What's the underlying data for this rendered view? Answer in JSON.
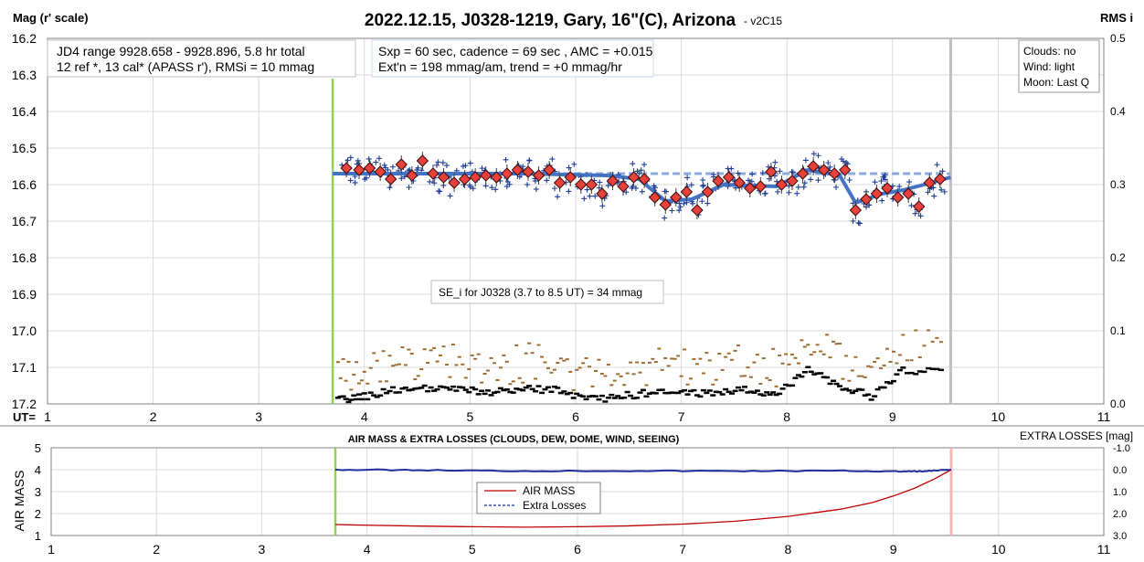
{
  "chart_data": [
    {
      "type": "scatter",
      "title": "2022.12.15, J0328-1219, Gary, 16\"(C), Arizona",
      "version": "- v2C15",
      "ylabel_left": "Mag (r' scale)",
      "ylabel_right": "RMS i",
      "xlabel": "UT=",
      "xlim": [
        1,
        11
      ],
      "ylim": [
        16.2,
        17.2
      ],
      "y2lim": [
        0.0,
        0.5
      ],
      "x_ticks": [
        "1",
        "2",
        "3",
        "4",
        "5",
        "6",
        "7",
        "8",
        "9",
        "10",
        "11"
      ],
      "y_ticks": [
        "16.2",
        "16.3",
        "16.4",
        "16.5",
        "16.6",
        "16.7",
        "16.8",
        "16.9",
        "17.0",
        "17.1",
        "17.2"
      ],
      "y2_ticks": [
        "0.5",
        "0.4",
        "0.3",
        "0.2",
        "0.1",
        "0.0"
      ],
      "grid": true,
      "start_line_x": 3.7,
      "end_line_x": 9.55,
      "colors": {
        "points": "#1f3d99",
        "averages": "#e8403a",
        "trend": "#4472c4",
        "reference": "#8eaadb",
        "rms": "#000000",
        "rms_scatter": "#9c6b30",
        "start_line": "#92d050",
        "end_line": "#bfbfbf"
      },
      "annotations": {
        "info_left_1": "JD4 range 9928.658 - 9928.896, 5.8 hr total",
        "info_left_2": "12 ref *, 13 cal*  (APASS r'), RMSi = 10 mmag",
        "info_mid_1": "Sxp = 60 sec, cadence = 69 sec , AMC = +0.015",
        "info_mid_2": "Ext'n = 198 mmag/am, trend = +0 mmag/hr",
        "weather_1": "Clouds: no",
        "weather_2": "Wind:  light",
        "weather_3": "Moon: Last Q",
        "se_note": "SE_i for J0328 (3.7 to 8.5 UT) = 34 mmag"
      },
      "reference_level": 16.57,
      "series": [
        {
          "name": "averages",
          "x": [
            3.83,
            3.95,
            4.05,
            4.15,
            4.25,
            4.35,
            4.45,
            4.55,
            4.65,
            4.75,
            4.85,
            4.95,
            5.05,
            5.15,
            5.25,
            5.35,
            5.45,
            5.55,
            5.65,
            5.75,
            5.85,
            5.95,
            6.05,
            6.15,
            6.25,
            6.35,
            6.45,
            6.55,
            6.65,
            6.75,
            6.85,
            6.95,
            7.05,
            7.15,
            7.25,
            7.35,
            7.45,
            7.55,
            7.65,
            7.75,
            7.85,
            7.95,
            8.05,
            8.15,
            8.25,
            8.35,
            8.45,
            8.55,
            8.65,
            8.75,
            8.85,
            8.95,
            9.05,
            9.15,
            9.25,
            9.35,
            9.45
          ],
          "y": [
            16.555,
            16.56,
            16.555,
            16.565,
            16.585,
            16.545,
            16.575,
            16.535,
            16.57,
            16.58,
            16.595,
            16.585,
            16.58,
            16.575,
            16.58,
            16.57,
            16.56,
            16.565,
            16.575,
            16.56,
            16.595,
            16.58,
            16.6,
            16.6,
            16.625,
            16.59,
            16.605,
            16.58,
            16.585,
            16.635,
            16.655,
            16.635,
            16.62,
            16.67,
            16.62,
            16.59,
            16.58,
            16.595,
            16.61,
            16.605,
            16.565,
            16.6,
            16.59,
            16.57,
            16.55,
            16.56,
            16.57,
            16.56,
            16.67,
            16.64,
            16.625,
            16.61,
            16.635,
            16.625,
            16.66,
            16.595,
            16.585
          ]
        },
        {
          "name": "trend",
          "x": [
            3.7,
            4.5,
            5.5,
            6.3,
            6.6,
            6.85,
            7.1,
            7.4,
            7.9,
            8.2,
            8.5,
            8.65,
            8.9,
            9.1,
            9.3,
            9.55
          ],
          "y": [
            16.57,
            16.57,
            16.57,
            16.575,
            16.585,
            16.645,
            16.64,
            16.6,
            16.605,
            16.56,
            16.575,
            16.65,
            16.625,
            16.615,
            16.6,
            16.58
          ]
        },
        {
          "name": "rms",
          "x": [
            3.75,
            4.0,
            4.3,
            4.6,
            4.9,
            5.2,
            5.5,
            5.8,
            6.1,
            6.4,
            6.7,
            7.0,
            7.3,
            7.6,
            7.9,
            8.2,
            8.5,
            8.8,
            9.1,
            9.5
          ],
          "y": [
            0.005,
            0.01,
            0.02,
            0.02,
            0.02,
            0.015,
            0.02,
            0.02,
            0.005,
            0.01,
            0.015,
            0.015,
            0.015,
            0.02,
            0.01,
            0.05,
            0.025,
            0.01,
            0.045,
            0.045
          ]
        }
      ]
    },
    {
      "type": "line",
      "title": "AIR MASS & EXTRA LOSSES (CLOUDS, DEW, DOME, WIND, SEEING)",
      "ylabel_left": "AIR MASS",
      "ylabel_right": "EXTRA LOSSES [mag]",
      "xlim": [
        1,
        11
      ],
      "ylim": [
        1,
        5
      ],
      "y2lim": [
        3.0,
        -1.0
      ],
      "x_ticks": [
        "1",
        "2",
        "3",
        "4",
        "5",
        "6",
        "7",
        "8",
        "9",
        "10",
        "11"
      ],
      "y_ticks": [
        "5",
        "4",
        "3",
        "2",
        "1"
      ],
      "y2_ticks": [
        "-1.0",
        "0.0",
        "1.0",
        "2.0",
        "3.0"
      ],
      "legend": [
        "AIR MASS",
        "Extra Losses"
      ],
      "series": [
        {
          "name": "AIR MASS",
          "x": [
            3.7,
            4.0,
            4.5,
            5.0,
            5.5,
            6.0,
            6.5,
            7.0,
            7.5,
            8.0,
            8.5,
            8.8,
            9.0,
            9.2,
            9.4,
            9.55
          ],
          "y": [
            1.5,
            1.47,
            1.43,
            1.4,
            1.38,
            1.4,
            1.44,
            1.52,
            1.65,
            1.87,
            2.2,
            2.5,
            2.8,
            3.15,
            3.6,
            4.0
          ]
        },
        {
          "name": "Extra Losses",
          "x": [
            3.7,
            4.5,
            5.5,
            6.5,
            7.5,
            8.5,
            9.0,
            9.3,
            9.55
          ],
          "y": [
            0.0,
            0.02,
            0.06,
            0.05,
            0.06,
            0.05,
            0.08,
            0.07,
            0.0
          ]
        }
      ],
      "start_line_x": 3.7,
      "end_line_x": 9.55,
      "colors": {
        "airmass": "#c00000",
        "losses": "#1f2f9c",
        "start_line": "#92d050",
        "end_line": "#f4b6b6"
      }
    }
  ]
}
